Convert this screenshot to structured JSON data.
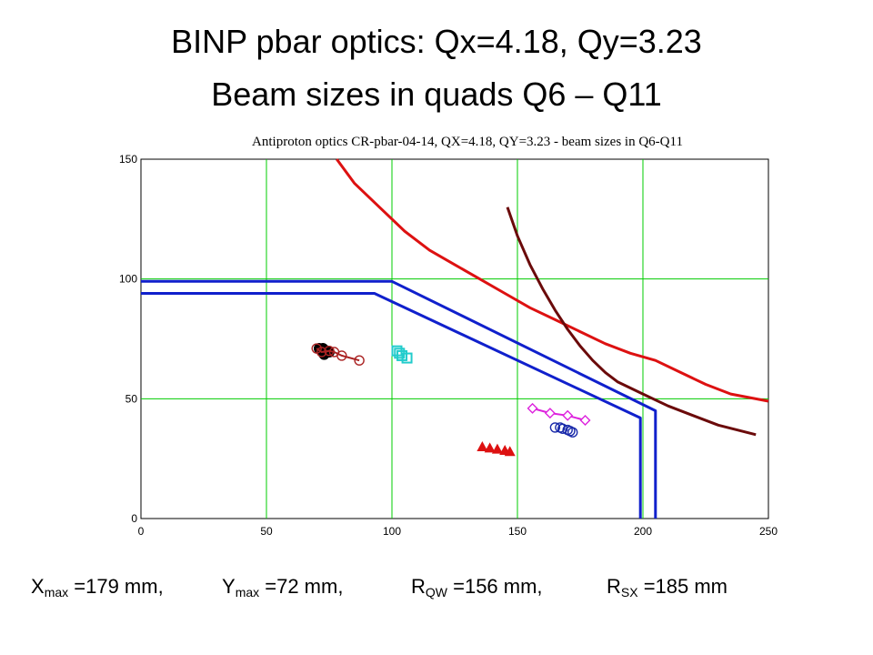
{
  "slide": {
    "title_line1": "BINP pbar optics:   Qx=4.18, Qy=3.23",
    "title_line2": "Beam sizes in quads Q6 – Q11"
  },
  "footer": [
    {
      "var": "X",
      "sub": "max",
      "rest": " =179 mm,"
    },
    {
      "var": "Y",
      "sub": "max",
      "rest": " =72 mm,"
    },
    {
      "var": "R",
      "sub": "QW",
      "rest": " =156 mm,"
    },
    {
      "var": "R",
      "sub": "SX",
      "rest": " =185 mm"
    }
  ],
  "chart_data": {
    "type": "scatter",
    "title": "Antiproton optics CR-pbar-04-14,  QX=4.18,  QY=3.23  -  beam sizes in Q6-Q11",
    "xlabel": "",
    "ylabel": "",
    "xlim": [
      0,
      250
    ],
    "ylim": [
      0,
      150
    ],
    "xticks": [
      0,
      50,
      100,
      150,
      200,
      250
    ],
    "yticks": [
      0,
      50,
      100,
      150
    ],
    "grid": true,
    "grid_color": "#00cc00",
    "lines": [
      {
        "color": "#dd1111",
        "points": [
          [
            78,
            150
          ],
          [
            85,
            140
          ],
          [
            95,
            130
          ],
          [
            105,
            120
          ],
          [
            115,
            112
          ],
          [
            125,
            106
          ],
          [
            135,
            100
          ],
          [
            145,
            94
          ],
          [
            155,
            88
          ],
          [
            165,
            83
          ],
          [
            175,
            78
          ],
          [
            185,
            73
          ],
          [
            195,
            69
          ],
          [
            205,
            66
          ],
          [
            215,
            61
          ],
          [
            225,
            56
          ],
          [
            235,
            52
          ],
          [
            250,
            49
          ]
        ]
      },
      {
        "color": "#6b0a0a",
        "points": [
          [
            146,
            130
          ],
          [
            150,
            118
          ],
          [
            155,
            106
          ],
          [
            160,
            96
          ],
          [
            165,
            87
          ],
          [
            170,
            79
          ],
          [
            175,
            72
          ],
          [
            180,
            66
          ],
          [
            185,
            61
          ],
          [
            190,
            57
          ],
          [
            200,
            52
          ],
          [
            210,
            47
          ],
          [
            220,
            43
          ],
          [
            230,
            39
          ],
          [
            245,
            35
          ]
        ]
      },
      {
        "color": "#1020cc",
        "points": [
          [
            0,
            99
          ],
          [
            100,
            99
          ],
          [
            205,
            45
          ],
          [
            205,
            0
          ]
        ]
      },
      {
        "color": "#1020cc",
        "points": [
          [
            0,
            94
          ],
          [
            93,
            94
          ],
          [
            199,
            42
          ],
          [
            199,
            0
          ]
        ]
      }
    ],
    "series": [
      {
        "color": "#000000",
        "marker": "filled-circle",
        "points": [
          [
            71,
            71
          ],
          [
            72,
            70
          ],
          [
            73,
            69.5
          ],
          [
            72.5,
            71
          ],
          [
            74,
            70
          ],
          [
            75,
            69.5
          ],
          [
            73,
            68.5
          ]
        ]
      },
      {
        "color": "#aa2222",
        "marker": "open-circle",
        "connected": true,
        "points": [
          [
            70,
            71
          ],
          [
            72,
            69.5
          ],
          [
            75,
            70
          ],
          [
            77,
            69.5
          ],
          [
            80,
            68
          ],
          [
            87,
            66
          ]
        ]
      },
      {
        "color": "#22cccc",
        "marker": "open-square",
        "points": [
          [
            102,
            70
          ],
          [
            103,
            69
          ],
          [
            104,
            68
          ],
          [
            106,
            67
          ]
        ]
      },
      {
        "color": "#dd1111",
        "marker": "filled-triangle",
        "points": [
          [
            136,
            30
          ],
          [
            139,
            29.5
          ],
          [
            142,
            29
          ],
          [
            145,
            28.5
          ],
          [
            147,
            28
          ]
        ]
      },
      {
        "color": "#dd22dd",
        "marker": "open-diamond",
        "connected": true,
        "points": [
          [
            156,
            46
          ],
          [
            163,
            44
          ],
          [
            170,
            43
          ],
          [
            177,
            41
          ]
        ]
      },
      {
        "color": "#1a2aaa",
        "marker": "open-circle",
        "points": [
          [
            165,
            38
          ],
          [
            167,
            38
          ],
          [
            168,
            37.5
          ],
          [
            170,
            37
          ],
          [
            171,
            36.5
          ],
          [
            172,
            36
          ]
        ]
      }
    ]
  }
}
